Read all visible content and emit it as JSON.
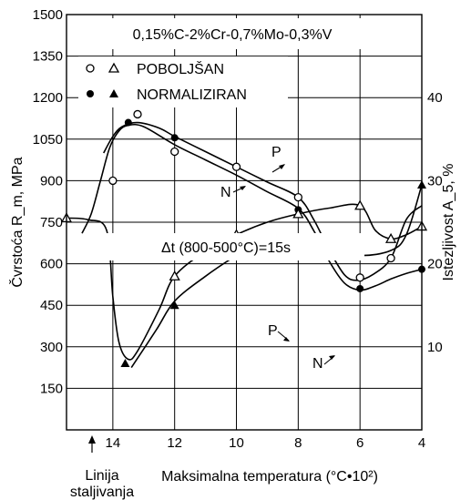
{
  "chart_data": {
    "type": "line",
    "composition": "0,15%C-2%Cr-0,7%Mo-0,3%V",
    "cooling_note": "Δt (800-500°C)=15s",
    "x_axis": {
      "label": "Maksimalna temperatura (°C•10²)",
      "ticks": [
        14,
        12,
        10,
        8,
        6,
        4
      ],
      "range": [
        15.5,
        4
      ],
      "marker_label": [
        "Linija",
        "staljivanja"
      ]
    },
    "y_left": {
      "label": "Čvrstoća R_m, MPa",
      "ticks": [
        150,
        300,
        450,
        600,
        750,
        900,
        1050,
        1200,
        1350,
        1500
      ],
      "range": [
        0,
        1500
      ]
    },
    "y_right": {
      "label": "Istezljivost A_5, %",
      "ticks": [
        10,
        20,
        30,
        40
      ],
      "range": [
        0,
        50
      ]
    },
    "legend": [
      {
        "name": "POBOLJŠAN",
        "markers": [
          "open-circle",
          "open-triangle"
        ]
      },
      {
        "name": "NORMALIZIRAN",
        "markers": [
          "filled-circle",
          "filled-triangle"
        ]
      }
    ],
    "curve_labels": {
      "P": "P",
      "N": "N"
    },
    "series": [
      {
        "name": "POBOLJŠAN",
        "quantity": "strength",
        "marker": "open-circle",
        "points": [
          [
            14,
            900
          ],
          [
            13.2,
            1140
          ],
          [
            12,
            1005
          ],
          [
            10,
            950
          ],
          [
            8,
            840
          ],
          [
            6,
            550
          ],
          [
            5,
            620
          ]
        ],
        "curve": [
          [
            14.3,
            1000
          ],
          [
            14.0,
            1060
          ],
          [
            13.7,
            1095
          ],
          [
            13.2,
            1110
          ],
          [
            12.5,
            1090
          ],
          [
            12,
            1060
          ],
          [
            11,
            1005
          ],
          [
            10,
            950
          ],
          [
            9,
            895
          ],
          [
            8,
            840
          ],
          [
            7.5,
            760
          ],
          [
            7.0,
            650
          ],
          [
            6.5,
            560
          ],
          [
            6.1,
            540
          ],
          [
            5.6,
            560
          ],
          [
            5.0,
            620
          ],
          [
            4.5,
            760
          ],
          [
            4.0,
            810
          ]
        ]
      },
      {
        "name": "NORMALIZIRAN",
        "quantity": "strength",
        "marker": "filled-circle",
        "points": [
          [
            13.5,
            1110
          ],
          [
            12,
            1055
          ],
          [
            8,
            795
          ],
          [
            6,
            510
          ],
          [
            4,
            580
          ]
        ],
        "curve": [
          [
            15.0,
            710
          ],
          [
            14.7,
            780
          ],
          [
            14.4,
            900
          ],
          [
            14.1,
            1020
          ],
          [
            13.8,
            1080
          ],
          [
            13.5,
            1100
          ],
          [
            13.0,
            1095
          ],
          [
            12,
            1030
          ],
          [
            11,
            975
          ],
          [
            10,
            920
          ],
          [
            9,
            860
          ],
          [
            8,
            800
          ],
          [
            7.5,
            720
          ],
          [
            7.0,
            610
          ],
          [
            6.5,
            530
          ],
          [
            6,
            505
          ],
          [
            5.5,
            520
          ],
          [
            5,
            545
          ],
          [
            4.5,
            565
          ],
          [
            4,
            580
          ]
        ]
      },
      {
        "name": "POBOLJŠAN",
        "quantity": "elongation",
        "marker": "open-triangle",
        "points": [
          [
            15.5,
            25.5
          ],
          [
            12,
            18.5
          ],
          [
            10,
            23.5
          ],
          [
            8,
            26
          ],
          [
            6,
            27
          ],
          [
            5,
            23
          ],
          [
            4,
            24.5
          ]
        ],
        "curve": [
          [
            15.5,
            25.5
          ],
          [
            14.8,
            25.3
          ],
          [
            14.2,
            24.0
          ],
          [
            14.0,
            16.0
          ],
          [
            13.8,
            10.5
          ],
          [
            13.5,
            8.5
          ],
          [
            13.2,
            9.5
          ],
          [
            12.5,
            14.5
          ],
          [
            12,
            18.5
          ],
          [
            11,
            21.5
          ],
          [
            10,
            23.5
          ],
          [
            9,
            25
          ],
          [
            8,
            26
          ],
          [
            7,
            26.7
          ],
          [
            6,
            27
          ],
          [
            5.5,
            24.0
          ],
          [
            5,
            23
          ],
          [
            4.5,
            23.5
          ],
          [
            4,
            24.5
          ]
        ]
      },
      {
        "name": "NORMALIZIRAN",
        "quantity": "elongation",
        "marker": "filled-triangle",
        "points": [
          [
            13.6,
            8
          ],
          [
            12,
            15
          ],
          [
            8,
            22.5
          ],
          [
            6,
            21
          ],
          [
            4,
            29.5
          ]
        ],
        "curve": [
          [
            13.4,
            7.5
          ],
          [
            12.6,
            12.0
          ],
          [
            12,
            15.5
          ],
          [
            11,
            18.5
          ],
          [
            10,
            21
          ],
          [
            9.5,
            22
          ],
          [
            9,
            23
          ],
          [
            8.5,
            23
          ],
          [
            8,
            22.5
          ],
          [
            7,
            21.8
          ],
          [
            6,
            21
          ],
          [
            5,
            21.6
          ],
          [
            4.5,
            23.5
          ],
          [
            4,
            29.5
          ]
        ]
      }
    ]
  }
}
